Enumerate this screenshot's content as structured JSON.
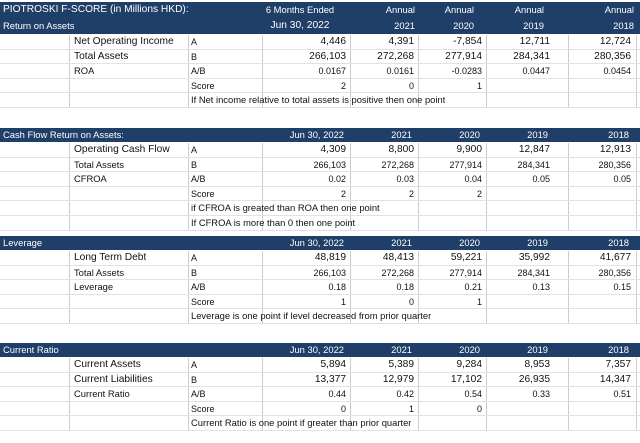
{
  "header": {
    "title": "PIOTROSKI F-SCORE (in Millions HKD):",
    "sub_label": "Return on Assets",
    "period_top": [
      "6 Months Ended",
      "Annual",
      "Annual",
      "Annual",
      "Annual"
    ],
    "period_bottom": [
      "Jun 30, 2022",
      "2021",
      "2020",
      "2019",
      "2018"
    ]
  },
  "sections": [
    {
      "id": "roa",
      "title": null,
      "columns": null,
      "rows": [
        {
          "label": "Net Operating Income",
          "code": "A",
          "values": [
            "4,446",
            "4,391",
            "-7,854",
            "12,711",
            "12,724"
          ],
          "big": true
        },
        {
          "label": "Total Assets",
          "code": "B",
          "values": [
            "266,103",
            "272,268",
            "277,914",
            "284,341",
            "280,356"
          ],
          "big": true
        },
        {
          "label": "ROA",
          "code": "A/B",
          "values": [
            "0.0167",
            "0.0161",
            "-0.0283",
            "0.0447",
            "0.0454"
          ],
          "big": false
        },
        {
          "label": "",
          "code": "Score",
          "values": [
            "2",
            "0",
            "1",
            "",
            ""
          ],
          "big": false
        }
      ],
      "notes": [
        "If Net income relative to total assets is positive then one point"
      ]
    },
    {
      "id": "cfroa",
      "title": "Cash Flow Return on Assets:",
      "columns": [
        "Jun 30, 2022",
        "2021",
        "2020",
        "2019",
        "2018"
      ],
      "rows": [
        {
          "label": "Operating Cash Flow",
          "code": "A",
          "values": [
            "4,309",
            "8,800",
            "9,900",
            "12,847",
            "12,913"
          ],
          "big": true
        },
        {
          "label": "Total Assets",
          "code": "B",
          "values": [
            "266,103",
            "272,268",
            "277,914",
            "284,341",
            "280,356"
          ],
          "big": false
        },
        {
          "label": "CFROA",
          "code": "A/B",
          "values": [
            "0.02",
            "0.03",
            "0.04",
            "0.05",
            "0.05"
          ],
          "big": false
        },
        {
          "label": "",
          "code": "Score",
          "values": [
            "2",
            "2",
            "2",
            "",
            ""
          ],
          "big": false
        }
      ],
      "notes": [
        "if CFROA is greated than ROA then one point",
        "If CFROA is more than 0 then one point"
      ]
    },
    {
      "id": "leverage",
      "title": "Leverage",
      "columns": [
        "Jun 30, 2022",
        "2021",
        "2020",
        "2019",
        "2018"
      ],
      "rows": [
        {
          "label": "Long Term Debt",
          "code": "A",
          "values": [
            "48,819",
            "48,413",
            "59,221",
            "35,992",
            "41,677"
          ],
          "big": true
        },
        {
          "label": "Total Assets",
          "code": "B",
          "values": [
            "266,103",
            "272,268",
            "277,914",
            "284,341",
            "280,356"
          ],
          "big": false
        },
        {
          "label": "Leverage",
          "code": "A/B",
          "values": [
            "0.18",
            "0.18",
            "0.21",
            "0.13",
            "0.15"
          ],
          "big": false
        },
        {
          "label": "",
          "code": "Score",
          "values": [
            "1",
            "0",
            "1",
            "",
            ""
          ],
          "big": false
        }
      ],
      "notes": [
        "Leverage is one point if level decreased from prior quarter"
      ]
    },
    {
      "id": "current",
      "title": "Current Ratio",
      "columns": [
        "Jun 30, 2022",
        "2021",
        "2020",
        "2019",
        "2018"
      ],
      "rows": [
        {
          "label": "Current Assets",
          "code": "A",
          "values": [
            "5,894",
            "5,389",
            "9,284",
            "8,953",
            "7,357"
          ],
          "big": true
        },
        {
          "label": "Current Liabilities",
          "code": "B",
          "values": [
            "13,377",
            "12,979",
            "17,102",
            "26,935",
            "14,347"
          ],
          "big": true
        },
        {
          "label": "Current Ratio",
          "code": "A/B",
          "values": [
            "0.44",
            "0.42",
            "0.54",
            "0.33",
            "0.51"
          ],
          "big": false
        },
        {
          "label": "",
          "code": "Score",
          "values": [
            "0",
            "1",
            "0",
            "",
            ""
          ],
          "big": false
        }
      ],
      "notes": [
        "Current Ratio is one point if greater than prior quarter"
      ]
    }
  ]
}
